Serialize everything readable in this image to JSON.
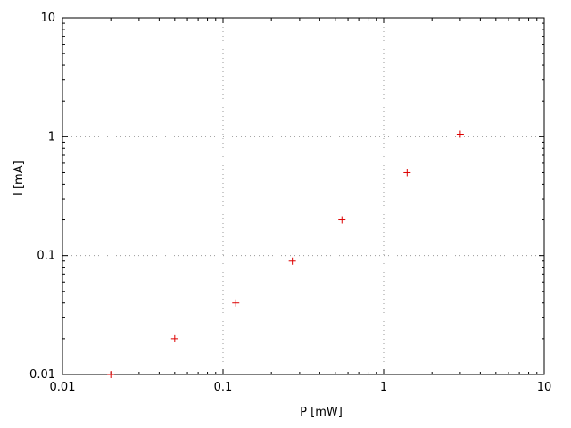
{
  "chart_data": {
    "type": "scatter",
    "title": "",
    "xlabel": "P [mW]",
    "ylabel": "I [mA]",
    "x_scale": "log",
    "y_scale": "log",
    "xlim": [
      0.01,
      10
    ],
    "ylim": [
      0.01,
      10
    ],
    "x_major_ticks": [
      0.01,
      0.1,
      1,
      10
    ],
    "x_tick_labels": [
      "0.01",
      "0.1",
      "1",
      "10"
    ],
    "y_major_ticks": [
      0.01,
      0.1,
      1,
      10
    ],
    "y_tick_labels": [
      "0.01",
      "0.1",
      "1",
      "10"
    ],
    "grid": true,
    "legend": "none",
    "marker": "plus",
    "marker_color": "#dd0000",
    "grid_color": "#9a9a9a",
    "border_color": "#000000",
    "points": [
      {
        "x": 0.02,
        "y": 0.01
      },
      {
        "x": 0.05,
        "y": 0.02
      },
      {
        "x": 0.12,
        "y": 0.04
      },
      {
        "x": 0.27,
        "y": 0.09
      },
      {
        "x": 0.55,
        "y": 0.2
      },
      {
        "x": 1.4,
        "y": 0.5
      },
      {
        "x": 3.0,
        "y": 1.05
      }
    ]
  }
}
